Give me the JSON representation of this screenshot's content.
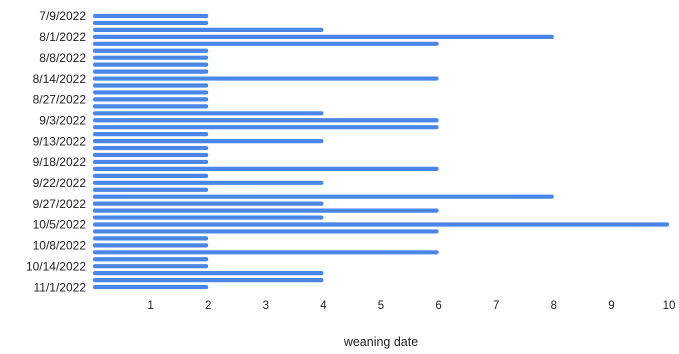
{
  "chart_data": {
    "type": "bar",
    "orientation": "horizontal",
    "title": "",
    "xlabel": "weaning date",
    "ylabel": "",
    "xlim": [
      0,
      10
    ],
    "x_ticks": [
      1,
      2,
      3,
      4,
      5,
      6,
      7,
      8,
      9,
      10
    ],
    "grid": false,
    "legend": "none",
    "color": "#4a86e8",
    "categories": [
      "7/9/2022",
      "",
      "",
      "8/1/2022",
      "",
      "",
      "8/8/2022",
      "",
      "",
      "8/14/2022",
      "",
      "",
      "8/27/2022",
      "",
      "",
      "9/3/2022",
      "",
      "",
      "9/13/2022",
      "",
      "",
      "9/18/2022",
      "",
      "",
      "9/22/2022",
      "",
      "",
      "9/27/2022",
      "",
      "",
      "10/5/2022",
      "",
      "",
      "10/8/2022",
      "",
      "",
      "10/14/2022",
      "",
      "",
      "11/1/2022"
    ],
    "values": [
      2,
      2,
      4,
      8,
      6,
      2,
      2,
      2,
      2,
      6,
      2,
      2,
      2,
      2,
      4,
      6,
      6,
      2,
      4,
      2,
      2,
      2,
      6,
      2,
      4,
      2,
      8,
      4,
      6,
      4,
      10,
      6,
      2,
      2,
      6,
      2,
      2,
      4,
      4,
      2
    ]
  }
}
